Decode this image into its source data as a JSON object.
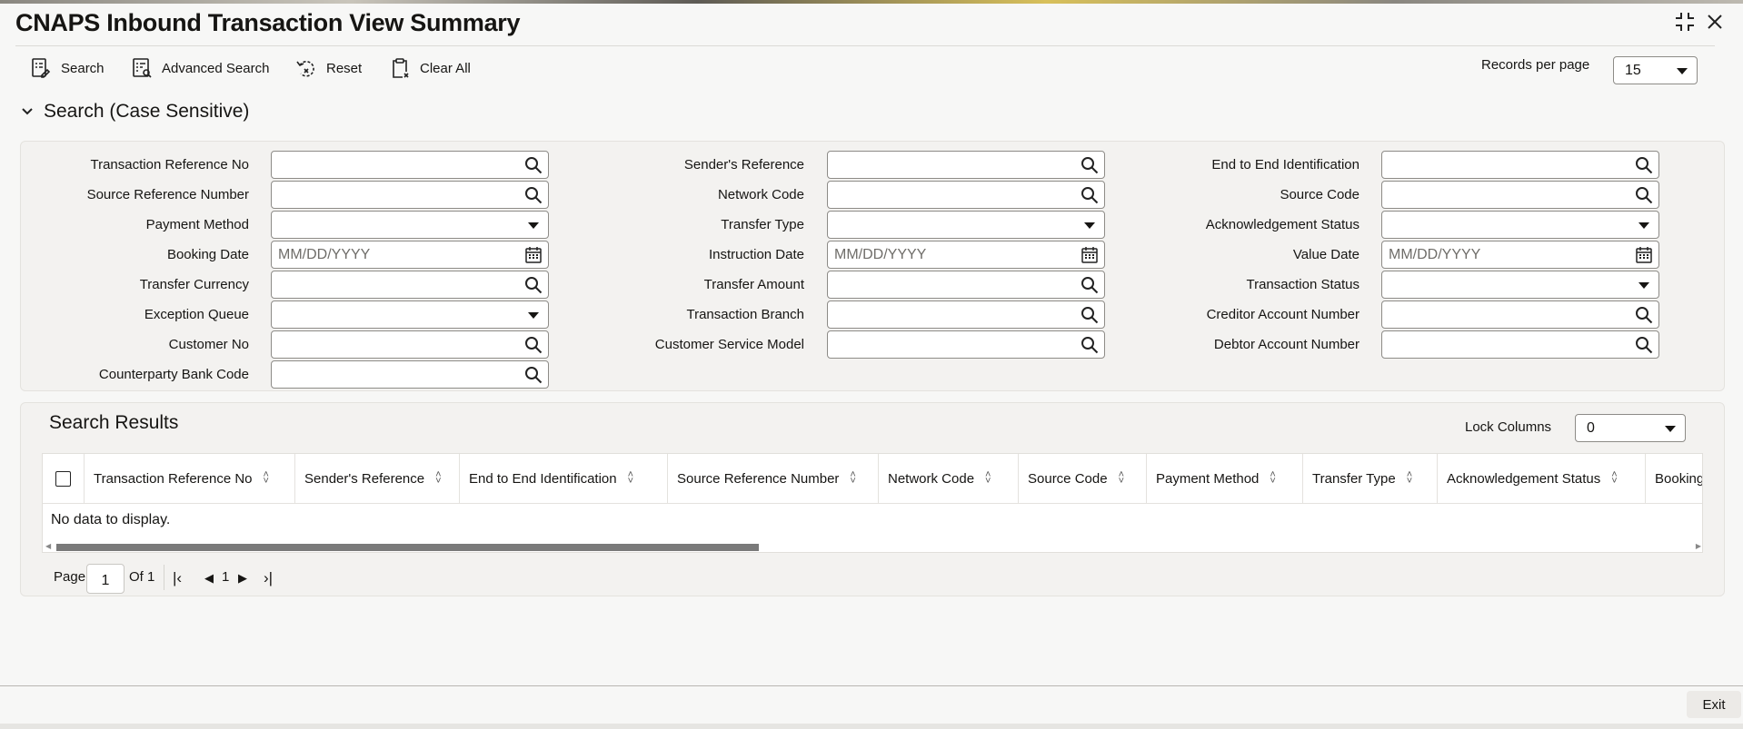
{
  "window": {
    "title": "CNAPS Inbound Transaction View Summary",
    "icons": [
      "compress-icon",
      "close-icon"
    ]
  },
  "toolbar": {
    "buttons": [
      {
        "label": "Search",
        "icon": "search-form-icon"
      },
      {
        "label": "Advanced Search",
        "icon": "advanced-search-icon"
      },
      {
        "label": "Reset",
        "icon": "reset-icon"
      },
      {
        "label": "Clear All",
        "icon": "clipboard-clear-icon"
      }
    ],
    "records_per_page_label": "Records per page",
    "records_per_page_value": "15"
  },
  "search_section": {
    "title": "Search (Case Sensitive)",
    "columns": [
      [
        {
          "label": "Transaction Reference No",
          "type": "lookup",
          "value": ""
        },
        {
          "label": "Source Reference Number",
          "type": "lookup",
          "value": ""
        },
        {
          "label": "Payment Method",
          "type": "select",
          "value": ""
        },
        {
          "label": "Booking Date",
          "type": "date",
          "placeholder": "MM/DD/YYYY"
        },
        {
          "label": "Transfer Currency",
          "type": "lookup",
          "value": ""
        },
        {
          "label": "Exception Queue",
          "type": "select",
          "value": ""
        },
        {
          "label": "Customer No",
          "type": "lookup",
          "value": ""
        },
        {
          "label": "Counterparty Bank Code",
          "type": "lookup",
          "value": ""
        }
      ],
      [
        {
          "label": "Sender's Reference",
          "type": "lookup",
          "value": ""
        },
        {
          "label": "Network Code",
          "type": "lookup",
          "value": ""
        },
        {
          "label": "Transfer Type",
          "type": "select",
          "value": ""
        },
        {
          "label": "Instruction Date",
          "type": "date",
          "placeholder": "MM/DD/YYYY"
        },
        {
          "label": "Transfer Amount",
          "type": "lookup",
          "value": ""
        },
        {
          "label": "Transaction Branch",
          "type": "lookup",
          "value": ""
        },
        {
          "label": "Customer Service Model",
          "type": "lookup",
          "value": ""
        }
      ],
      [
        {
          "label": "End to End Identification",
          "type": "lookup",
          "value": ""
        },
        {
          "label": "Source Code",
          "type": "lookup",
          "value": ""
        },
        {
          "label": "Acknowledgement Status",
          "type": "select",
          "value": ""
        },
        {
          "label": "Value Date",
          "type": "date",
          "placeholder": "MM/DD/YYYY"
        },
        {
          "label": "Transaction Status",
          "type": "select",
          "value": ""
        },
        {
          "label": "Creditor Account Number",
          "type": "lookup",
          "value": ""
        },
        {
          "label": "Debtor Account Number",
          "type": "lookup",
          "value": ""
        }
      ]
    ]
  },
  "results": {
    "title": "Search Results",
    "lock_columns_label": "Lock Columns",
    "lock_columns_value": "0",
    "columns": [
      "Transaction Reference No",
      "Sender's Reference",
      "End to End Identification",
      "Source Reference Number",
      "Network Code",
      "Source Code",
      "Payment Method",
      "Transfer Type",
      "Acknowledgement Status",
      "Booking Date"
    ],
    "empty_text": "No data to display.",
    "pagination": {
      "page_label": "Page",
      "page_value": "1",
      "of_label": "Of 1",
      "current": "1"
    }
  },
  "footer": {
    "exit_label": "Exit"
  }
}
